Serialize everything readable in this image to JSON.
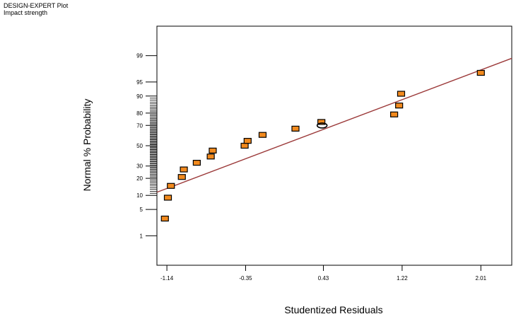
{
  "header": {
    "line1": "DESIGN-EXPERT Plot",
    "line2": "Impact strength"
  },
  "colors": {
    "point_fill": "#f28a1e",
    "point_stroke": "#000000",
    "fit_line": "#9c3a3a",
    "frame": "#000000"
  },
  "chart_data": {
    "type": "scatter",
    "title": "",
    "xlabel": "Studentized Residuals",
    "ylabel": "Normal % Probability",
    "xlim": [
      -1.24,
      2.32
    ],
    "x_ticks": [
      -1.14,
      -0.35,
      0.43,
      1.22,
      2.01
    ],
    "x_tick_labels": [
      "-1.14",
      "-0.35",
      "0.43",
      "1.22",
      "2.01"
    ],
    "y_scale": "normal-probability",
    "ylim": [
      0.1,
      99.9
    ],
    "y_ticks": [
      1,
      5,
      10,
      20,
      30,
      50,
      70,
      80,
      90,
      95,
      99
    ],
    "y_tick_labels": [
      "1",
      "5",
      "10",
      "20",
      "30",
      "50",
      "70",
      "80",
      "90",
      "95",
      "99"
    ],
    "grid": false,
    "fit_line": {
      "x": [
        -1.24,
        2.32
      ],
      "y": [
        11.5,
        98.8
      ]
    },
    "series": [
      {
        "points": [
          {
            "x": -1.16,
            "y": 3
          },
          {
            "x": -1.13,
            "y": 9
          },
          {
            "x": -1.1,
            "y": 15
          },
          {
            "x": -0.99,
            "y": 21
          },
          {
            "x": -0.97,
            "y": 27
          },
          {
            "x": -0.84,
            "y": 33
          },
          {
            "x": -0.7,
            "y": 39
          },
          {
            "x": -0.68,
            "y": 45
          },
          {
            "x": -0.36,
            "y": 50
          },
          {
            "x": -0.33,
            "y": 55
          },
          {
            "x": -0.18,
            "y": 61
          },
          {
            "x": 0.15,
            "y": 67
          },
          {
            "x": 0.41,
            "y": 73
          },
          {
            "x": 1.14,
            "y": 79
          },
          {
            "x": 1.19,
            "y": 85
          },
          {
            "x": 1.21,
            "y": 91
          },
          {
            "x": 2.01,
            "y": 97
          }
        ],
        "highlighted_index": 12
      }
    ]
  }
}
